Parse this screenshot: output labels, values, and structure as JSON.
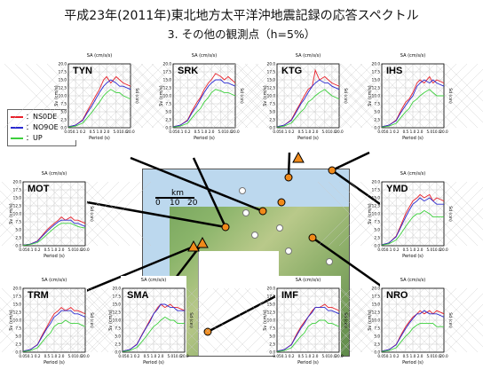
{
  "title_line1": "平成23年(2011年)東北地方太平洋沖地震記録の応答スペクトル",
  "title_line2": "3. その他の観測点（h=5%）",
  "legend": [
    {
      "label": "：NS0DE",
      "color": "#e8202a"
    },
    {
      "label": "：NO9OE",
      "color": "#2a2ad0"
    },
    {
      "label": "：UP",
      "color": "#3ccf3c"
    }
  ],
  "map": {
    "scale_unit": "km",
    "scale_ticks": [
      "0",
      "10",
      "20"
    ]
  },
  "axis_common": {
    "xlabel": "Period (s)",
    "ylabel": "Sv (cm/s)",
    "sa_label": "SA (cm/s/s)",
    "sd_label": "Sd (cm)",
    "x_ticks": [
      "0.05",
      "0.1",
      "0.2",
      "0.5",
      "1.0",
      "2.0",
      "5.0",
      "10.0",
      "20.0"
    ],
    "y_ticks": [
      "0.0",
      "2.5",
      "5.0",
      "7.5",
      "10.0",
      "12.5",
      "15.0",
      "17.5",
      "20.0"
    ]
  },
  "chart_data": [
    {
      "type": "line",
      "station": "TYN",
      "ylim": [
        0,
        20
      ],
      "xlim": [
        0.05,
        20
      ],
      "x": [
        0.05,
        0.1,
        0.2,
        0.3,
        0.5,
        0.7,
        1.0,
        1.5,
        2.0,
        3.0,
        5.0,
        7.0,
        10.0,
        20.0
      ],
      "series": [
        {
          "name": "NS0DE",
          "values": [
            0.3,
            0.8,
            2.5,
            5,
            8,
            10,
            12,
            15,
            16,
            14,
            16,
            15,
            14,
            13
          ]
        },
        {
          "name": "NO9OE",
          "values": [
            0.3,
            0.8,
            2.3,
            4.5,
            7,
            9,
            11,
            13,
            14,
            15,
            14,
            13,
            13,
            12
          ]
        },
        {
          "name": "UP",
          "values": [
            0.2,
            0.5,
            1.5,
            3,
            5,
            6.5,
            8,
            10,
            11,
            12,
            11,
            11,
            10,
            9
          ]
        }
      ]
    },
    {
      "type": "line",
      "station": "SRK",
      "ylim": [
        0,
        20
      ],
      "xlim": [
        0.05,
        20
      ],
      "x": [
        0.05,
        0.1,
        0.2,
        0.3,
        0.5,
        0.7,
        1.0,
        1.5,
        2.0,
        3.0,
        5.0,
        7.0,
        10.0,
        20.0
      ],
      "series": [
        {
          "name": "NS0DE",
          "values": [
            0.3,
            0.8,
            2.4,
            5,
            8,
            9.5,
            12,
            14,
            15,
            17,
            16,
            15,
            16,
            14
          ]
        },
        {
          "name": "NO9OE",
          "values": [
            0.3,
            0.8,
            2.2,
            4.5,
            7,
            9,
            11,
            13,
            14,
            15,
            15,
            14,
            14,
            13
          ]
        },
        {
          "name": "UP",
          "values": [
            0.2,
            0.5,
            1.4,
            3,
            5,
            6,
            8,
            9.5,
            11,
            12,
            11.5,
            11,
            11,
            10
          ]
        }
      ]
    },
    {
      "type": "line",
      "station": "KTG",
      "ylim": [
        0,
        20
      ],
      "xlim": [
        0.05,
        20
      ],
      "x": [
        0.05,
        0.1,
        0.2,
        0.3,
        0.5,
        0.7,
        1.0,
        1.5,
        2.0,
        3.0,
        5.0,
        7.0,
        10.0,
        20.0
      ],
      "series": [
        {
          "name": "NS0DE",
          "values": [
            0.3,
            0.8,
            2.5,
            5,
            8,
            10,
            12,
            13,
            18,
            15,
            16,
            15,
            14,
            13
          ]
        },
        {
          "name": "NO9OE",
          "values": [
            0.3,
            0.8,
            2.3,
            4.5,
            7.5,
            9,
            11,
            13,
            14,
            15,
            14,
            14,
            13,
            12
          ]
        },
        {
          "name": "UP",
          "values": [
            0.2,
            0.5,
            1.5,
            3,
            5,
            6,
            8,
            9,
            10,
            11,
            12,
            11,
            10,
            9
          ]
        }
      ]
    },
    {
      "type": "line",
      "station": "IHS",
      "ylim": [
        0,
        20
      ],
      "xlim": [
        0.05,
        20
      ],
      "x": [
        0.05,
        0.1,
        0.2,
        0.3,
        0.5,
        0.7,
        1.0,
        1.5,
        2.0,
        3.0,
        5.0,
        7.0,
        10.0,
        20.0
      ],
      "series": [
        {
          "name": "NS0DE",
          "values": [
            0.3,
            0.8,
            2.4,
            5,
            8,
            9,
            11,
            14,
            15,
            14,
            16,
            14,
            15,
            14
          ]
        },
        {
          "name": "NO9OE",
          "values": [
            0.3,
            0.8,
            2.2,
            4.5,
            7,
            8.5,
            10,
            13,
            14,
            15,
            14,
            15,
            14,
            13
          ]
        },
        {
          "name": "UP",
          "values": [
            0.2,
            0.5,
            1.4,
            3,
            5,
            6,
            8,
            9,
            10,
            11,
            12,
            11,
            10,
            10
          ]
        }
      ]
    },
    {
      "type": "line",
      "station": "MOT",
      "ylim": [
        0,
        20
      ],
      "xlim": [
        0.05,
        20
      ],
      "x": [
        0.05,
        0.1,
        0.2,
        0.3,
        0.5,
        0.7,
        1.0,
        1.5,
        2.0,
        3.0,
        5.0,
        7.0,
        10.0,
        20.0
      ],
      "series": [
        {
          "name": "NS0DE",
          "values": [
            0.2,
            0.5,
            1.5,
            3,
            5,
            6,
            7,
            8,
            9,
            8,
            9,
            8,
            8,
            7
          ]
        },
        {
          "name": "NO9OE",
          "values": [
            0.2,
            0.5,
            1.4,
            2.8,
            4.5,
            5.5,
            6.5,
            7.5,
            8,
            8,
            8,
            7,
            7,
            6
          ]
        },
        {
          "name": "UP",
          "values": [
            0.1,
            0.4,
            1.0,
            2,
            3.5,
            4.5,
            5.5,
            6.5,
            7,
            7,
            7,
            6.5,
            6,
            5.5
          ]
        }
      ]
    },
    {
      "type": "line",
      "station": "YMD",
      "ylim": [
        0,
        20
      ],
      "xlim": [
        0.05,
        20
      ],
      "x": [
        0.05,
        0.1,
        0.2,
        0.3,
        0.5,
        0.7,
        1.0,
        1.5,
        2.0,
        3.0,
        5.0,
        7.0,
        10.0,
        20.0
      ],
      "series": [
        {
          "name": "NS0DE",
          "values": [
            0.3,
            0.9,
            3,
            6,
            10,
            12,
            14,
            15,
            16,
            15,
            16,
            14,
            15,
            14
          ]
        },
        {
          "name": "NO9OE",
          "values": [
            0.3,
            0.9,
            2.8,
            5.5,
            9,
            11,
            13,
            14,
            15,
            14,
            15,
            14,
            13,
            13
          ]
        },
        {
          "name": "UP",
          "values": [
            0.2,
            0.6,
            1.8,
            3.5,
            6,
            7.5,
            9,
            10,
            10,
            11,
            10,
            9,
            9,
            9
          ]
        }
      ]
    },
    {
      "type": "line",
      "station": "TRM",
      "ylim": [
        0,
        20
      ],
      "xlim": [
        0.05,
        20
      ],
      "x": [
        0.05,
        0.1,
        0.2,
        0.3,
        0.5,
        0.7,
        1.0,
        1.5,
        2.0,
        3.0,
        5.0,
        7.0,
        10.0,
        20.0
      ],
      "series": [
        {
          "name": "NS0DE",
          "values": [
            0.3,
            0.8,
            2.4,
            5,
            8,
            10,
            12,
            13,
            14,
            13,
            14,
            13,
            13,
            12
          ]
        },
        {
          "name": "NO9OE",
          "values": [
            0.3,
            0.8,
            2.3,
            4.6,
            7.5,
            9,
            11,
            12,
            13,
            13,
            13,
            12,
            12,
            11
          ]
        },
        {
          "name": "UP",
          "values": [
            0.2,
            0.5,
            1.4,
            3,
            5,
            6,
            8,
            9,
            9,
            10,
            9,
            9,
            9,
            8
          ]
        }
      ]
    },
    {
      "type": "line",
      "station": "SMA",
      "ylim": [
        0,
        20
      ],
      "xlim": [
        0.05,
        20
      ],
      "x": [
        0.05,
        0.1,
        0.2,
        0.3,
        0.5,
        0.7,
        1.0,
        1.5,
        2.0,
        3.0,
        5.0,
        7.0,
        10.0,
        20.0
      ],
      "series": [
        {
          "name": "NS0DE",
          "values": [
            0.3,
            0.8,
            2.5,
            5,
            8,
            10,
            12,
            14,
            15,
            14,
            15,
            14,
            14,
            13
          ]
        },
        {
          "name": "NO9OE",
          "values": [
            0.3,
            0.8,
            2.4,
            4.8,
            7.8,
            9.5,
            12,
            13.5,
            15,
            15,
            14,
            14,
            13,
            13
          ]
        },
        {
          "name": "UP",
          "values": [
            0.2,
            0.5,
            1.5,
            3,
            5,
            6.5,
            8,
            9,
            10,
            11,
            10,
            10,
            9,
            9
          ]
        }
      ]
    },
    {
      "type": "line",
      "station": "IMF",
      "ylim": [
        0,
        20
      ],
      "xlim": [
        0.05,
        20
      ],
      "x": [
        0.05,
        0.1,
        0.2,
        0.3,
        0.5,
        0.7,
        1.0,
        1.5,
        2.0,
        3.0,
        5.0,
        7.0,
        10.0,
        20.0
      ],
      "series": [
        {
          "name": "NS0DE",
          "values": [
            0.3,
            0.8,
            2.4,
            5,
            8,
            9.5,
            11,
            13,
            14,
            14,
            15,
            14,
            14,
            13
          ]
        },
        {
          "name": "NO9OE",
          "values": [
            0.3,
            0.8,
            2.3,
            4.6,
            7.5,
            9,
            11,
            12.5,
            14,
            14,
            14,
            13,
            13,
            12
          ]
        },
        {
          "name": "UP",
          "values": [
            0.2,
            0.5,
            1.4,
            3,
            5,
            6,
            8,
            9,
            9,
            10,
            10,
            9,
            9,
            8
          ]
        }
      ]
    },
    {
      "type": "line",
      "station": "NRO",
      "ylim": [
        0,
        20
      ],
      "xlim": [
        0.05,
        20
      ],
      "x": [
        0.05,
        0.1,
        0.2,
        0.3,
        0.5,
        0.7,
        1.0,
        1.5,
        2.0,
        3.0,
        5.0,
        7.0,
        10.0,
        20.0
      ],
      "series": [
        {
          "name": "NS0DE",
          "values": [
            0.3,
            0.8,
            2.4,
            5,
            8,
            9.5,
            11,
            12,
            13,
            12,
            13,
            12,
            13,
            12
          ]
        },
        {
          "name": "NO9OE",
          "values": [
            0.3,
            0.8,
            2.3,
            4.6,
            7.4,
            9,
            10.5,
            12,
            12,
            13,
            12,
            12,
            12,
            11
          ]
        },
        {
          "name": "UP",
          "values": [
            0.2,
            0.5,
            1.4,
            3,
            5,
            6,
            7.5,
            8.5,
            9,
            9,
            9,
            9,
            8,
            8
          ]
        }
      ]
    }
  ]
}
